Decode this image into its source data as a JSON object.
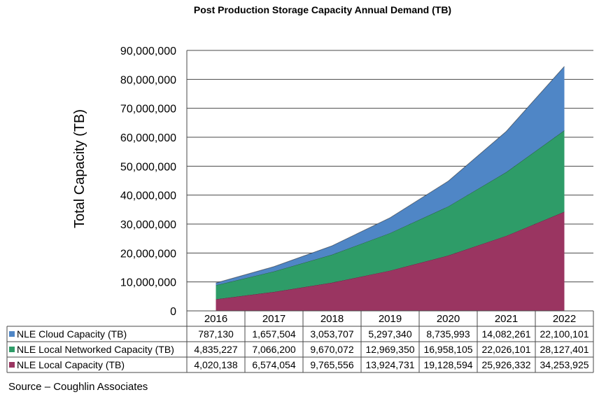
{
  "chart_data": {
    "type": "area",
    "stacked": true,
    "title": "Post Production Storage Capacity Annual Demand (TB)",
    "ylabel": "Total Capacity (TB)",
    "xlabel": "",
    "ylim": [
      0,
      90000000
    ],
    "y_ticks": [
      "0",
      "10,000,000",
      "20,000,000",
      "30,000,000",
      "40,000,000",
      "50,000,000",
      "60,000,000",
      "70,000,000",
      "80,000,000",
      "90,000,000"
    ],
    "categories": [
      "2016",
      "2017",
      "2018",
      "2019",
      "2020",
      "2021",
      "2022"
    ],
    "grid": true,
    "legend": "data-table",
    "series": [
      {
        "name": "NLE Cloud Capacity (TB)",
        "color": "#4f86c6",
        "values": [
          787130,
          1657504,
          3053707,
          5297340,
          8735993,
          14082261,
          22100101
        ],
        "labels": [
          "787,130",
          "1,657,504",
          "3,053,707",
          "5,297,340",
          "8,735,993",
          "14,082,261",
          "22,100,101"
        ]
      },
      {
        "name": "NLE Local Networked Capacity (TB)",
        "color": "#2e9c68",
        "values": [
          4835227,
          7066200,
          9670072,
          12969350,
          16958105,
          22026101,
          28127401
        ],
        "labels": [
          "4,835,227",
          "7,066,200",
          "9,670,072",
          "12,969,350",
          "16,958,105",
          "22,026,101",
          "28,127,401"
        ]
      },
      {
        "name": "NLE Local Capacity (TB)",
        "color": "#9a3561",
        "values": [
          4020138,
          6574054,
          9765556,
          13924731,
          19128594,
          25926332,
          34253925
        ],
        "labels": [
          "4,020,138",
          "6,574,054",
          "9,765,556",
          "13,924,731",
          "19,128,594",
          "25,926,332",
          "34,253,925"
        ]
      }
    ]
  },
  "source": "Source – Coughlin Associates"
}
